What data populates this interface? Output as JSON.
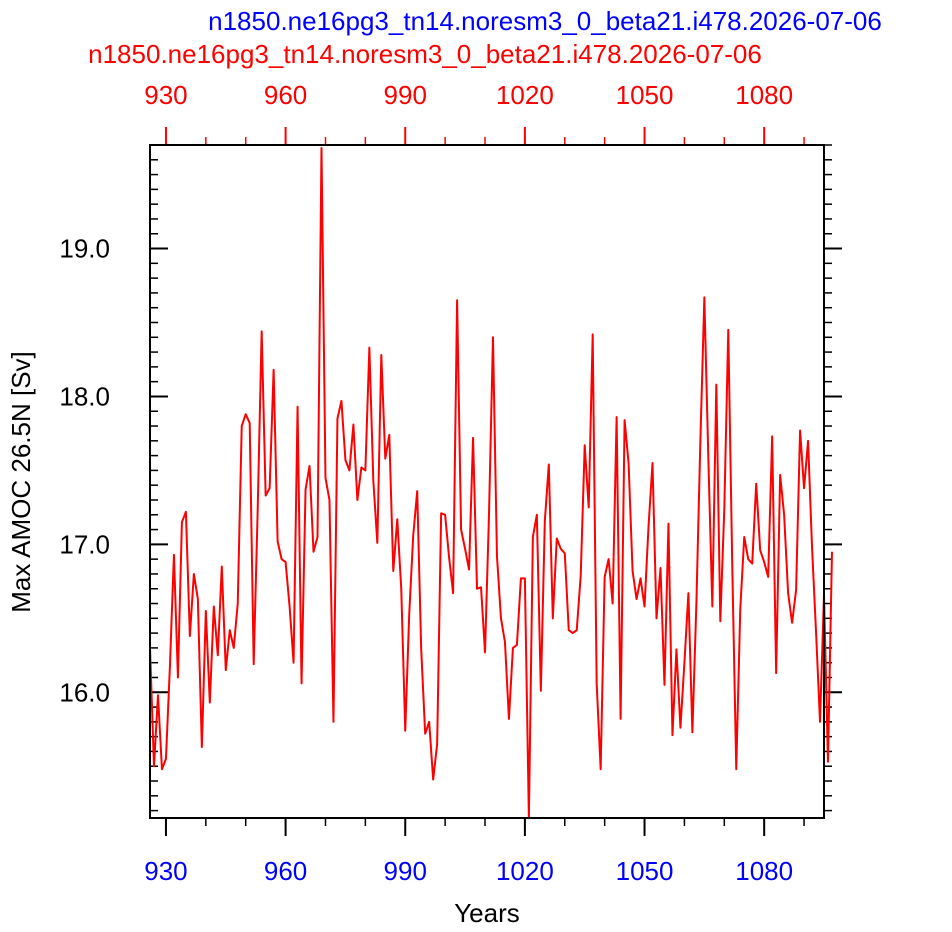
{
  "chart_data": {
    "type": "line",
    "title_lines": [
      {
        "text": "n1850.ne16pg3_tn14.noresm3_0_beta21.i478.2026-07-06",
        "color": "#0000ff"
      },
      {
        "text": "n1850.ne16pg3_tn14.noresm3_0_beta21.i478.2026-07-06",
        "color": "#ff0000"
      }
    ],
    "xlabel": "Years",
    "ylabel": "Max AMOC 26.5N [Sv]",
    "xlim": [
      926,
      1095
    ],
    "ylim": [
      15.15,
      19.7
    ],
    "x_major_ticks": [
      930,
      960,
      990,
      1020,
      1050,
      1080
    ],
    "x_minor_step": 10,
    "y_major_ticks": [
      16.0,
      17.0,
      18.0,
      19.0
    ],
    "y_tick_labels": [
      "16.0",
      "17.0",
      "18.0",
      "19.0"
    ],
    "y_minor_step": 0.1,
    "grid": false,
    "top_axis_color": "#ff0000",
    "bottom_axis_color": "#0000ff",
    "series": [
      {
        "color": "#ff0000",
        "x_start": 926,
        "values": [
          16.3,
          15.5,
          15.98,
          15.48,
          15.55,
          16.18,
          16.93,
          16.1,
          17.15,
          17.22,
          16.38,
          16.8,
          16.63,
          15.63,
          16.55,
          15.93,
          16.58,
          16.25,
          16.85,
          16.15,
          16.42,
          16.3,
          16.6,
          17.8,
          17.88,
          17.82,
          16.19,
          17.23,
          18.44,
          17.33,
          17.38,
          18.18,
          17.02,
          16.9,
          16.88,
          16.58,
          16.2,
          17.93,
          16.06,
          17.37,
          17.53,
          16.95,
          17.05,
          19.68,
          17.45,
          17.3,
          15.8,
          17.85,
          17.97,
          17.57,
          17.5,
          17.81,
          17.3,
          17.52,
          17.5,
          18.33,
          17.43,
          17.01,
          18.28,
          17.58,
          17.74,
          16.82,
          17.17,
          16.7,
          15.74,
          16.53,
          17.06,
          17.36,
          16.29,
          15.72,
          15.8,
          15.41,
          15.65,
          17.21,
          17.2,
          16.91,
          16.67,
          18.65,
          17.1,
          16.97,
          16.83,
          17.72,
          16.7,
          16.71,
          16.27,
          17.2,
          18.4,
          16.92,
          16.5,
          16.34,
          15.82,
          16.3,
          16.32,
          16.77,
          16.77,
          15.15,
          17.05,
          17.2,
          16.01,
          17.16,
          17.54,
          16.5,
          17.04,
          16.97,
          16.94,
          16.42,
          16.4,
          16.42,
          16.79,
          17.67,
          17.25,
          18.42,
          16.06,
          15.48,
          16.78,
          16.9,
          16.6,
          17.86,
          15.82,
          17.84,
          17.55,
          16.82,
          16.63,
          16.77,
          16.58,
          17.12,
          17.55,
          16.5,
          16.84,
          16.05,
          17.14,
          15.71,
          16.29,
          15.76,
          16.2,
          16.67,
          15.73,
          16.6,
          17.7,
          18.67,
          17.58,
          16.58,
          18.08,
          16.48,
          17.24,
          18.45,
          16.85,
          15.48,
          16.56,
          17.05,
          16.9,
          16.87,
          17.41,
          16.96,
          16.88,
          16.78,
          17.73,
          16.13,
          17.47,
          17.2,
          16.67,
          16.47,
          16.69,
          17.77,
          17.38,
          17.7,
          16.98,
          16.41,
          15.8,
          16.66,
          15.53,
          16.95
        ]
      }
    ]
  }
}
